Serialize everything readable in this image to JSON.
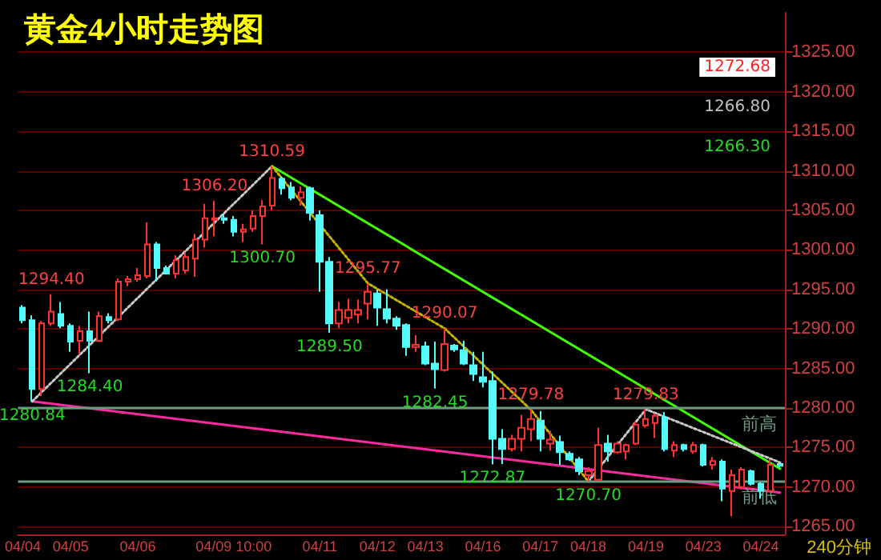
{
  "chart_data": {
    "type": "candlestick",
    "title": "黄金4小时走势图",
    "categories": [
      "04/04",
      null,
      null,
      null,
      null,
      "04/05",
      null,
      null,
      null,
      null,
      null,
      null,
      "04/06",
      null,
      null,
      null,
      null,
      null,
      null,
      null,
      null,
      null,
      "04/09 10:00",
      null,
      null,
      null,
      null,
      null,
      null,
      null,
      null,
      "04/11",
      null,
      null,
      null,
      null,
      null,
      "04/12",
      null,
      null,
      null,
      null,
      "04/13",
      null,
      null,
      null,
      null,
      null,
      "04/16",
      null,
      null,
      null,
      null,
      null,
      "04/17",
      null,
      null,
      null,
      null,
      "04/18",
      null,
      null,
      null,
      null,
      null,
      "04/19",
      null,
      null,
      null,
      null,
      null,
      "04/23",
      null,
      null,
      null,
      null,
      null,
      "04/24",
      null,
      null
    ],
    "ohlc": [
      [
        1292.7,
        1293.0,
        1290.7,
        1291.1
      ],
      [
        1291.1,
        1291.7,
        1280.84,
        1282.4
      ],
      [
        1282.4,
        1291.0,
        1281.5,
        1290.7
      ],
      [
        1290.7,
        1294.4,
        1290.4,
        1292.2
      ],
      [
        1291.9,
        1293.4,
        1290.1,
        1290.4
      ],
      [
        1290.4,
        1290.7,
        1287.1,
        1288.4
      ],
      [
        1288.5,
        1290.4,
        1286.8,
        1289.7
      ],
      [
        1289.7,
        1292.2,
        1284.4,
        1288.5
      ],
      [
        1288.5,
        1292.2,
        1288.4,
        1291.6
      ],
      [
        1291.5,
        1292.0,
        1290.7,
        1291.1
      ],
      [
        1291.2,
        1296.4,
        1291.0,
        1296.0
      ],
      [
        1296.0,
        1296.7,
        1295.4,
        1296.3
      ],
      [
        1296.3,
        1297.7,
        1296.0,
        1296.8
      ],
      [
        1296.7,
        1303.5,
        1296.4,
        1300.7
      ],
      [
        1300.7,
        1301.0,
        1296.0,
        1297.7
      ],
      [
        1297.7,
        1298.0,
        1296.9,
        1297.0
      ],
      [
        1297.0,
        1299.3,
        1296.4,
        1298.7
      ],
      [
        1297.4,
        1299.7,
        1297.0,
        1299.1
      ],
      [
        1298.9,
        1302.0,
        1296.6,
        1301.3
      ],
      [
        1301.3,
        1305.8,
        1300.3,
        1304.0
      ],
      [
        1303.8,
        1306.2,
        1301.7,
        1304.0
      ],
      [
        1304.0,
        1304.6,
        1303.3,
        1303.8
      ],
      [
        1303.8,
        1304.3,
        1301.7,
        1302.3
      ],
      [
        1302.3,
        1303.3,
        1301.0,
        1302.6
      ],
      [
        1302.7,
        1305.0,
        1302.3,
        1304.3
      ],
      [
        1304.3,
        1306.3,
        1300.7,
        1305.5
      ],
      [
        1305.6,
        1310.59,
        1305.0,
        1309.1
      ],
      [
        1309.0,
        1309.3,
        1307.0,
        1307.8
      ],
      [
        1307.9,
        1308.6,
        1306.3,
        1306.6
      ],
      [
        1306.6,
        1308.0,
        1305.6,
        1307.3
      ],
      [
        1307.8,
        1308.0,
        1303.7,
        1304.7
      ],
      [
        1304.4,
        1305.0,
        1294.7,
        1298.5
      ],
      [
        1298.5,
        1299.1,
        1289.5,
        1290.7
      ],
      [
        1290.7,
        1293.4,
        1290.1,
        1292.4
      ],
      [
        1291.4,
        1293.8,
        1290.7,
        1292.4
      ],
      [
        1291.8,
        1293.7,
        1290.7,
        1292.4
      ],
      [
        1293.2,
        1295.77,
        1291.2,
        1294.7
      ],
      [
        1294.5,
        1295.0,
        1290.4,
        1292.7
      ],
      [
        1292.5,
        1295.0,
        1290.7,
        1291.3
      ],
      [
        1291.3,
        1291.6,
        1289.9,
        1290.4
      ],
      [
        1290.5,
        1290.7,
        1286.6,
        1287.7
      ],
      [
        1287.7,
        1289.2,
        1287.1,
        1288.0
      ],
      [
        1287.8,
        1288.4,
        1285.4,
        1285.6
      ],
      [
        1285.6,
        1288.4,
        1282.45,
        1284.9
      ],
      [
        1284.8,
        1290.07,
        1284.6,
        1288.1
      ],
      [
        1287.9,
        1288.1,
        1287.1,
        1287.4
      ],
      [
        1287.3,
        1288.5,
        1285.4,
        1285.6
      ],
      [
        1285.4,
        1287.1,
        1283.4,
        1284.3
      ],
      [
        1283.9,
        1287.1,
        1282.6,
        1283.3
      ],
      [
        1283.4,
        1284.6,
        1272.87,
        1276.1
      ],
      [
        1276.1,
        1277.3,
        1272.9,
        1274.8
      ],
      [
        1274.8,
        1276.6,
        1274.5,
        1276.1
      ],
      [
        1276.1,
        1279.1,
        1274.5,
        1277.5
      ],
      [
        1277.3,
        1279.78,
        1275.8,
        1278.6
      ],
      [
        1278.4,
        1279.6,
        1274.5,
        1276.1
      ],
      [
        1275.5,
        1277.1,
        1274.6,
        1276.0
      ],
      [
        1275.7,
        1276.5,
        1272.8,
        1274.4
      ],
      [
        1274.2,
        1274.5,
        1273.3,
        1273.5
      ],
      [
        1273.5,
        1273.8,
        1271.5,
        1272.0
      ],
      [
        1271.5,
        1272.5,
        1270.7,
        1272.0
      ],
      [
        1270.9,
        1277.5,
        1270.8,
        1275.3
      ],
      [
        1275.5,
        1276.6,
        1273.2,
        1274.5
      ],
      [
        1274.4,
        1275.8,
        1274.2,
        1275.5
      ],
      [
        1274.5,
        1275.5,
        1273.5,
        1275.3
      ],
      [
        1275.5,
        1278.3,
        1275.3,
        1277.9
      ],
      [
        1277.8,
        1279.83,
        1277.5,
        1278.6
      ],
      [
        1278.1,
        1279.3,
        1276.2,
        1279.0
      ],
      [
        1278.8,
        1279.5,
        1274.5,
        1274.8
      ],
      [
        1274.6,
        1275.8,
        1273.8,
        1275.3
      ],
      [
        1275.3,
        1275.5,
        1274.5,
        1274.8
      ],
      [
        1274.5,
        1275.7,
        1274.2,
        1275.3
      ],
      [
        1275.3,
        1275.5,
        1272.6,
        1272.8
      ],
      [
        1272.8,
        1273.8,
        1272.2,
        1273.3
      ],
      [
        1273.2,
        1273.5,
        1268.2,
        1269.8
      ],
      [
        1269.5,
        1272.2,
        1266.3,
        1271.5
      ],
      [
        1270.0,
        1272.5,
        1269.7,
        1272.2
      ],
      [
        1272.0,
        1272.2,
        1270.2,
        1270.4
      ],
      [
        1270.4,
        1270.6,
        1268.5,
        1269.5
      ],
      [
        1269.5,
        1273.5,
        1269.5,
        1272.8
      ],
      [
        1272.9,
        1273.0,
        1272.5,
        1272.68
      ]
    ],
    "colors": [
      "#54fcfc",
      "#54fcfc",
      "#ff3232",
      "#ff3232",
      "#54fcfc",
      "#54fcfc",
      "#ff3232",
      "#54fcfc",
      "#ff3232",
      "#54fcfc",
      "#ff3232",
      "#ff3232",
      "#ff3232",
      "#ff3232",
      "#54fcfc",
      "#54fcfc",
      "#ff3232",
      "#ff3232",
      "#ff3232",
      "#ff3232",
      "#ff3232",
      "#54fcfc",
      "#54fcfc",
      "#ff3232",
      "#ff3232",
      "#ff3232",
      "#ff3232",
      "#54fcfc",
      "#54fcfc",
      "#ff3232",
      "#54fcfc",
      "#54fcfc",
      "#54fcfc",
      "#ff3232",
      "#ff3232",
      "#ff3232",
      "#ff3232",
      "#54fcfc",
      "#54fcfc",
      "#54fcfc",
      "#54fcfc",
      "#ff3232",
      "#54fcfc",
      "#54fcfc",
      "#ff3232",
      "#54fcfc",
      "#54fcfc",
      "#54fcfc",
      "#54fcfc",
      "#54fcfc",
      "#54fcfc",
      "#ff3232",
      "#ff3232",
      "#ff3232",
      "#54fcfc",
      "#ff3232",
      "#54fcfc",
      "#54fcfc",
      "#54fcfc",
      "#ff3232",
      "#ff3232",
      "#54fcfc",
      "#ff3232",
      "#ff3232",
      "#ff3232",
      "#ff3232",
      "#ff3232",
      "#54fcfc",
      "#ff3232",
      "#54fcfc",
      "#ff3232",
      "#54fcfc",
      "#ff3232",
      "#54fcfc",
      "#ff3232",
      "#ff3232",
      "#54fcfc",
      "#54fcfc",
      "#ff3232",
      "#54fcfc"
    ],
    "series": [
      {
        "type": "line",
        "color": "#ff2aa0",
        "line_style": "solid",
        "values": [
          null,
          1280.84,
          null,
          null,
          null,
          null,
          null,
          null,
          null,
          null,
          null,
          null,
          null,
          null,
          null,
          null,
          null,
          null,
          null,
          null,
          null,
          null,
          null,
          null,
          null,
          null,
          null,
          null,
          null,
          null,
          null,
          null,
          null,
          null,
          null,
          null,
          null,
          null,
          null,
          null,
          null,
          null,
          null,
          null,
          null,
          null,
          null,
          null,
          null,
          null,
          null,
          null,
          null,
          null,
          null,
          null,
          null,
          null,
          null,
          null,
          null,
          null,
          null,
          null,
          null,
          null,
          null,
          null,
          null,
          null,
          null,
          null,
          null,
          null,
          null,
          null,
          null,
          null,
          null,
          1269.3
        ]
      },
      {
        "type": "line",
        "color": "#40ff00",
        "line_style": "solid",
        "values": [
          null,
          null,
          null,
          null,
          null,
          null,
          null,
          null,
          null,
          null,
          null,
          null,
          null,
          null,
          null,
          null,
          null,
          null,
          null,
          null,
          null,
          null,
          null,
          null,
          null,
          null,
          1310.59,
          null,
          null,
          null,
          null,
          null,
          null,
          null,
          null,
          null,
          null,
          null,
          null,
          null,
          null,
          null,
          null,
          null,
          null,
          null,
          null,
          null,
          null,
          null,
          null,
          null,
          null,
          null,
          null,
          null,
          null,
          null,
          null,
          null,
          null,
          null,
          null,
          null,
          null,
          null,
          null,
          null,
          null,
          null,
          null,
          null,
          null,
          null,
          null,
          null,
          null,
          null,
          null,
          1272.3
        ]
      },
      {
        "type": "line",
        "color": "#c8c8c8",
        "line_style": "dotted",
        "values": [
          null,
          1280.84,
          null,
          null,
          null,
          null,
          null,
          null,
          null,
          null,
          null,
          null,
          null,
          null,
          null,
          null,
          null,
          null,
          null,
          null,
          null,
          null,
          null,
          null,
          null,
          null,
          1310.59,
          null,
          null,
          null,
          null,
          null,
          null,
          null,
          null,
          null,
          null,
          null,
          null,
          null,
          null,
          null,
          null,
          null,
          null,
          null,
          null,
          null,
          null,
          null,
          null,
          null,
          null,
          null,
          null,
          null,
          null,
          null,
          null,
          null,
          null,
          null,
          null,
          null,
          null,
          null,
          null,
          null,
          null,
          null,
          null,
          null,
          null,
          null,
          null,
          null,
          null,
          null,
          null,
          null
        ]
      },
      {
        "type": "line",
        "color": "#c8c8c8",
        "line_style": "dotted",
        "values": [
          null,
          null,
          null,
          null,
          null,
          null,
          null,
          null,
          null,
          null,
          null,
          null,
          null,
          null,
          null,
          null,
          null,
          null,
          null,
          null,
          null,
          null,
          null,
          null,
          null,
          null,
          null,
          null,
          null,
          null,
          null,
          null,
          null,
          null,
          null,
          null,
          null,
          null,
          null,
          null,
          null,
          null,
          null,
          null,
          null,
          null,
          null,
          null,
          null,
          null,
          null,
          null,
          null,
          null,
          null,
          null,
          null,
          null,
          null,
          1270.7,
          null,
          null,
          null,
          null,
          null,
          1279.83,
          null,
          null,
          null,
          null,
          null,
          null,
          null,
          null,
          null,
          null,
          null,
          null,
          null,
          1273.1
        ]
      },
      {
        "type": "line",
        "color": "#c8b400",
        "line_style": "dotted",
        "values": [
          null,
          null,
          null,
          null,
          null,
          null,
          null,
          null,
          null,
          null,
          null,
          null,
          null,
          null,
          null,
          null,
          null,
          null,
          null,
          null,
          null,
          null,
          null,
          null,
          null,
          null,
          1310.59,
          null,
          null,
          null,
          null,
          null,
          null,
          null,
          null,
          null,
          1295.77,
          null,
          null,
          null,
          null,
          null,
          null,
          null,
          1290.07,
          null,
          null,
          null,
          null,
          null,
          null,
          null,
          null,
          1279.78,
          null,
          null,
          null,
          null,
          null,
          1270.7,
          null,
          null,
          null,
          null,
          null,
          null,
          null,
          null,
          null,
          null,
          null,
          null,
          null,
          null,
          null,
          null,
          null,
          null,
          null,
          null
        ]
      }
    ],
    "ylim": [
      1264,
      1330
    ],
    "yticks": [
      {
        "value": 1265,
        "label": "1265.00"
      },
      {
        "value": 1270,
        "label": "1270.00"
      },
      {
        "value": 1275,
        "label": "1275.00"
      },
      {
        "value": 1280,
        "label": "1280.00"
      },
      {
        "value": 1285,
        "label": "1285.00"
      },
      {
        "value": 1290,
        "label": "1290.00"
      },
      {
        "value": 1295,
        "label": "1295.00"
      },
      {
        "value": 1300,
        "label": "1300.00"
      },
      {
        "value": 1305,
        "label": "1305.00"
      },
      {
        "value": 1310,
        "label": "1310.00"
      },
      {
        "value": 1315,
        "label": "1315.00"
      },
      {
        "value": 1320,
        "label": "1320.00"
      },
      {
        "value": 1325,
        "label": "1325.00"
      }
    ],
    "grid": "y",
    "ref_lines": [
      {
        "axis": "y",
        "value": 1280,
        "label": "前高",
        "color": "#6a9a80"
      },
      {
        "axis": "y",
        "value": 1270.8,
        "label": "前低",
        "color": "#6a9a80"
      }
    ],
    "annotations": [
      {
        "text": "1310.59",
        "y": 1310.59
      },
      {
        "text": "1306.20",
        "y": 1306.2
      },
      {
        "text": "1300.70",
        "y": 1300.7
      },
      {
        "text": "1294.40",
        "y": 1294.4
      },
      {
        "text": "1284.40",
        "y": 1284.4
      },
      {
        "text": "1280.84",
        "y": 1280.84
      },
      {
        "text": "1295.77",
        "y": 1295.77
      },
      {
        "text": "1289.50",
        "y": 1289.5
      },
      {
        "text": "1290.07",
        "y": 1290.07
      },
      {
        "text": "1282.45",
        "y": 1282.45
      },
      {
        "text": "1279.78",
        "y": 1279.78
      },
      {
        "text": "1272.87",
        "y": 1272.87
      },
      {
        "text": "1279.83",
        "y": 1279.83
      },
      {
        "text": "1270.70",
        "y": 1270.7
      },
      "1272.68",
      "1266.80",
      "1266.30",
      "240分钟"
    ]
  }
}
